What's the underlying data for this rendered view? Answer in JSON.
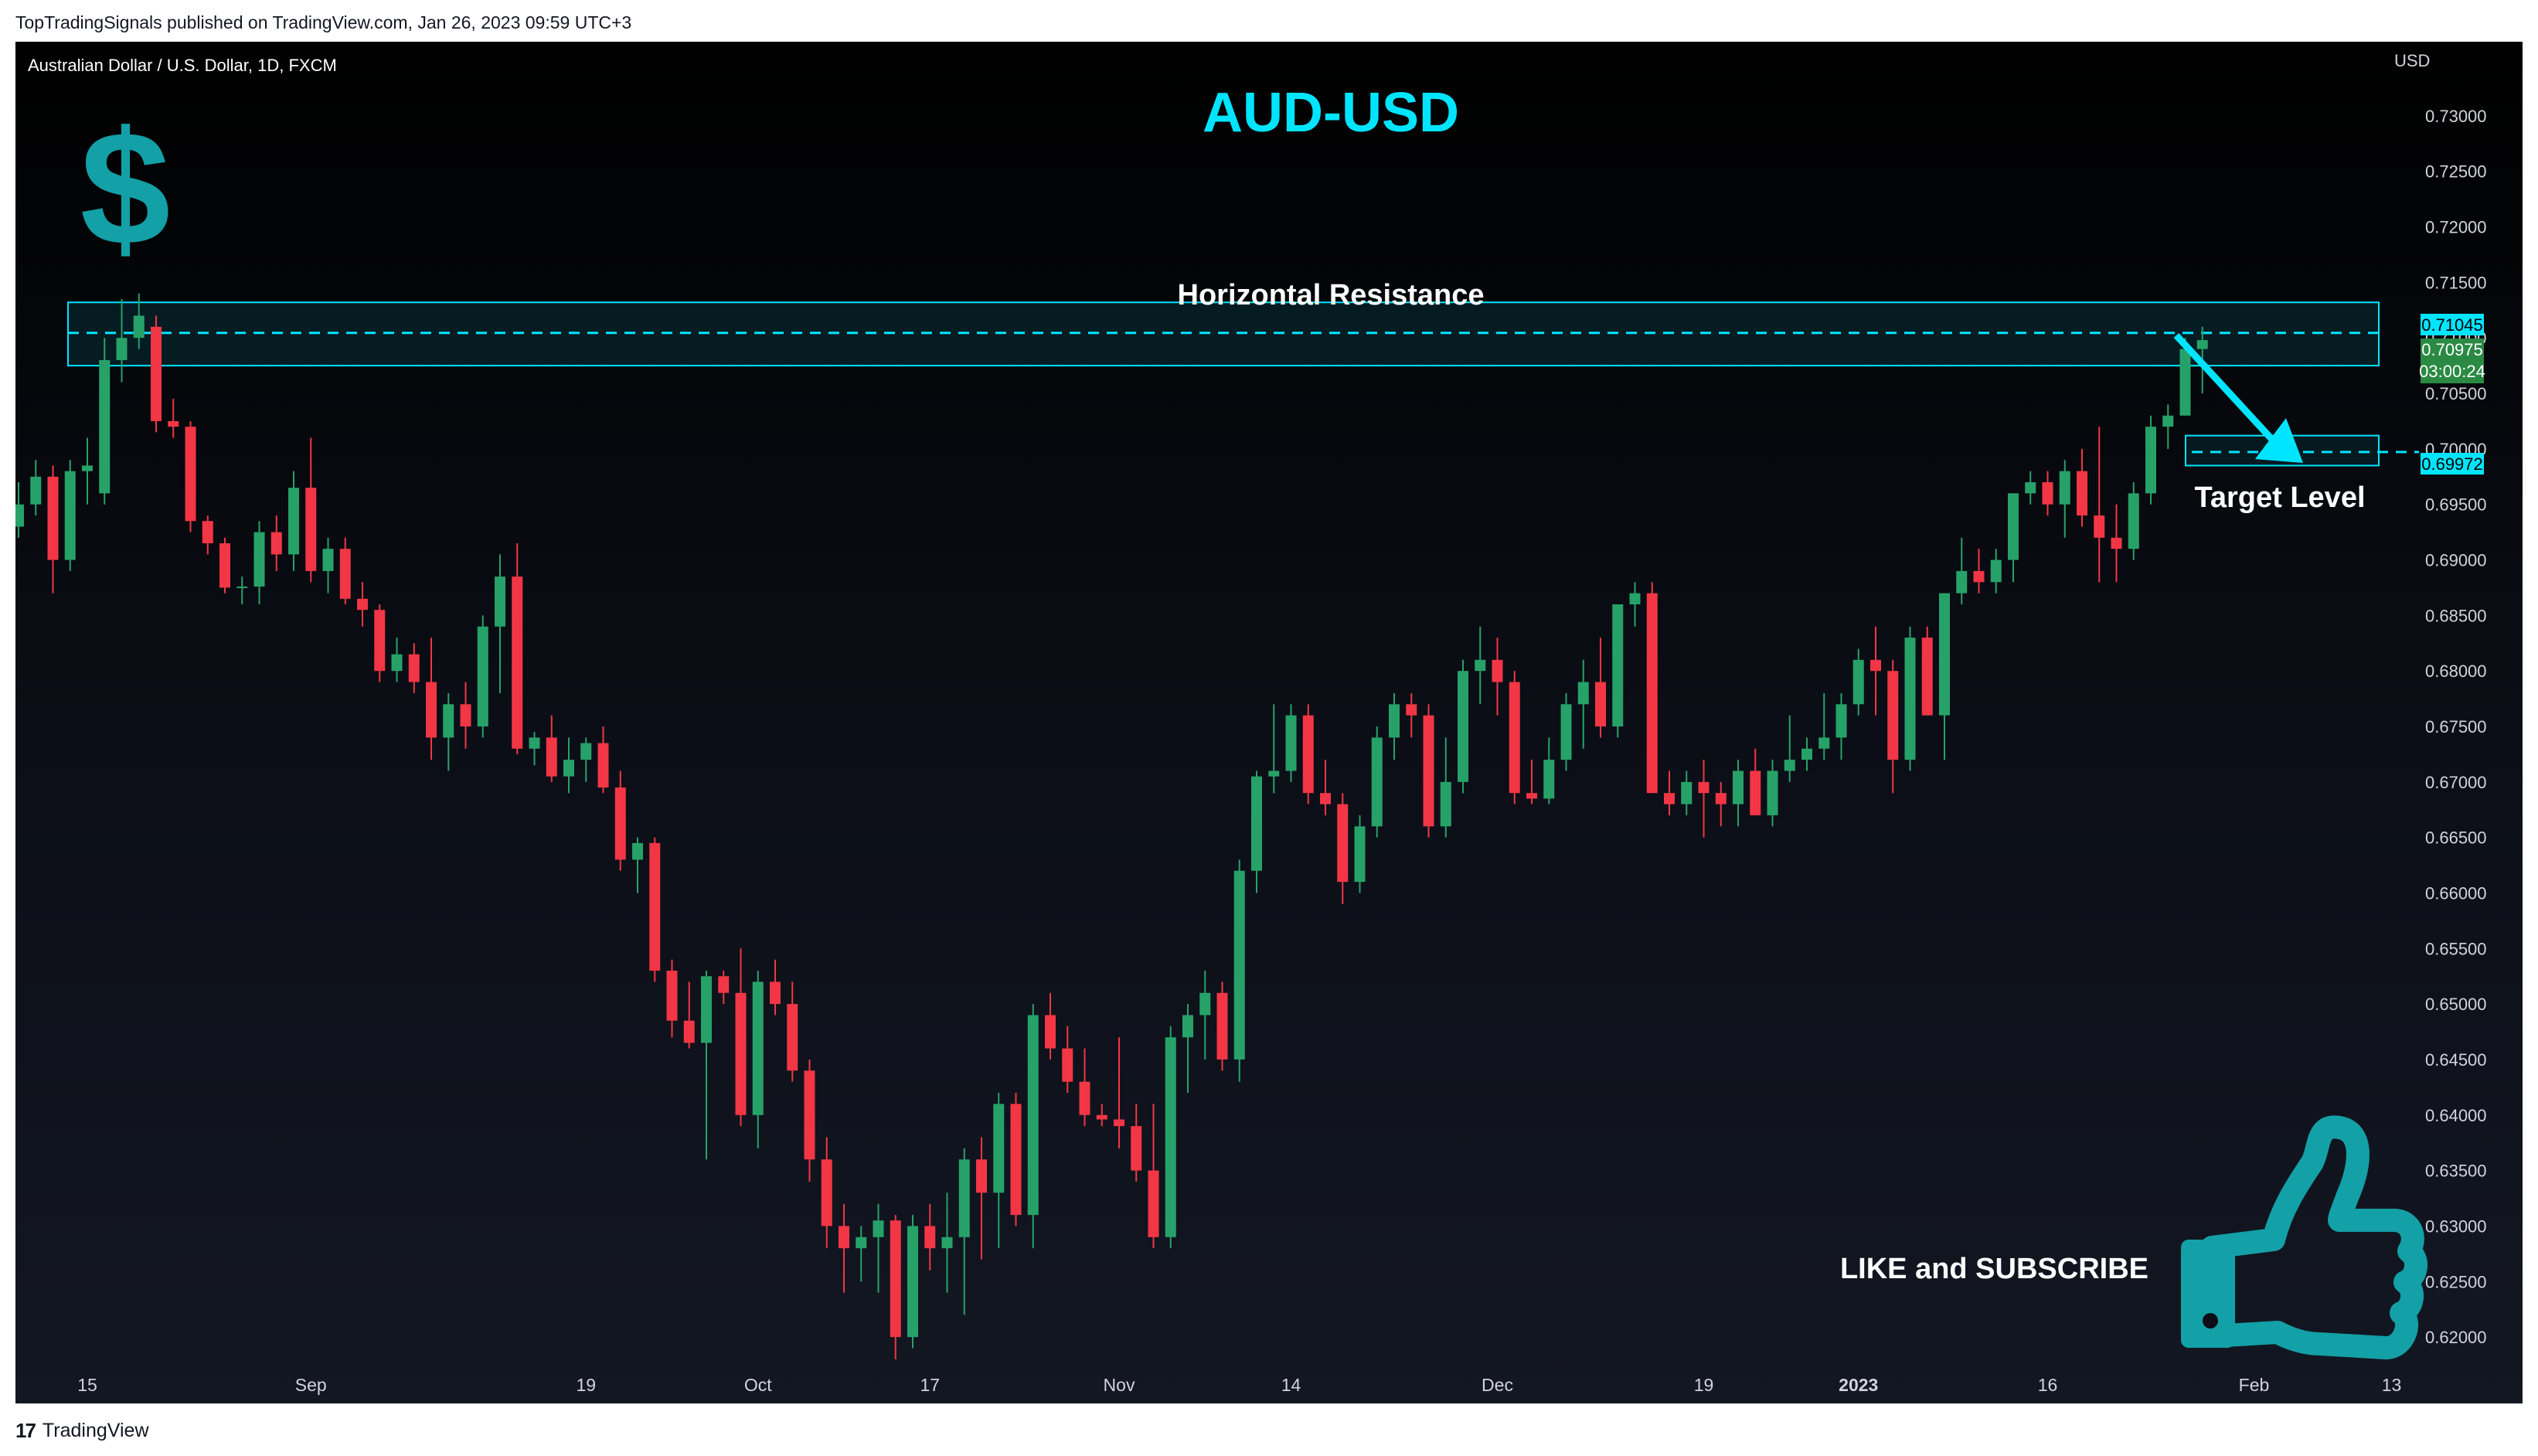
{
  "header": {
    "published": "TopTradingSignals published on TradingView.com, Jan 26, 2023 09:59 UTC+3"
  },
  "footer": {
    "logo": "17",
    "brand": "TradingView"
  },
  "chart_data": {
    "type": "candlestick",
    "symbol_line": "Australian Dollar / U.S. Dollar, 1D, FXCM",
    "title": "AUD-USD",
    "currency": "USD",
    "ylim": [
      0.6175,
      0.7325
    ],
    "y_ticks": [
      "0.73000",
      "0.72500",
      "0.72000",
      "0.71500",
      "0.71000",
      "0.70500",
      "0.70000",
      "0.69500",
      "0.69000",
      "0.68500",
      "0.68000",
      "0.67500",
      "0.67000",
      "0.66500",
      "0.66000",
      "0.65500",
      "0.65000",
      "0.64500",
      "0.64000",
      "0.63500",
      "0.63000",
      "0.62500",
      "0.62000"
    ],
    "x_ticks": [
      {
        "label": "15",
        "bar": 4,
        "bold": false
      },
      {
        "label": "Sep",
        "bar": 17,
        "bold": false
      },
      {
        "label": "19",
        "bar": 33,
        "bold": false
      },
      {
        "label": "Oct",
        "bar": 43,
        "bold": false
      },
      {
        "label": "17",
        "bar": 53,
        "bold": false
      },
      {
        "label": "Nov",
        "bar": 64,
        "bold": false
      },
      {
        "label": "14",
        "bar": 74,
        "bold": false
      },
      {
        "label": "Dec",
        "bar": 86,
        "bold": false
      },
      {
        "label": "19",
        "bar": 98,
        "bold": false
      },
      {
        "label": "2023",
        "bar": 107,
        "bold": true
      },
      {
        "label": "16",
        "bar": 118,
        "bold": false
      },
      {
        "label": "Feb",
        "bar": 130,
        "bold": false
      },
      {
        "label": "13",
        "bar": 138,
        "bold": false
      }
    ],
    "candles": [
      [
        0.693,
        0.697,
        0.692,
        0.695
      ],
      [
        0.695,
        0.699,
        0.694,
        0.6975
      ],
      [
        0.6975,
        0.6985,
        0.687,
        0.69
      ],
      [
        0.69,
        0.699,
        0.689,
        0.698
      ],
      [
        0.698,
        0.701,
        0.695,
        0.6985
      ],
      [
        0.696,
        0.71,
        0.695,
        0.708
      ],
      [
        0.708,
        0.7135,
        0.706,
        0.71
      ],
      [
        0.71,
        0.714,
        0.709,
        0.712
      ],
      [
        0.711,
        0.712,
        0.7015,
        0.7025
      ],
      [
        0.7025,
        0.7045,
        0.701,
        0.702
      ],
      [
        0.702,
        0.7025,
        0.6925,
        0.6935
      ],
      [
        0.6935,
        0.694,
        0.6905,
        0.6915
      ],
      [
        0.6915,
        0.692,
        0.687,
        0.6875
      ],
      [
        0.6875,
        0.6885,
        0.686,
        0.6876
      ],
      [
        0.6876,
        0.6935,
        0.686,
        0.6925
      ],
      [
        0.6925,
        0.694,
        0.689,
        0.6905
      ],
      [
        0.6905,
        0.698,
        0.689,
        0.6965
      ],
      [
        0.6965,
        0.701,
        0.688,
        0.689
      ],
      [
        0.689,
        0.692,
        0.687,
        0.691
      ],
      [
        0.691,
        0.692,
        0.686,
        0.6865
      ],
      [
        0.6865,
        0.688,
        0.684,
        0.6855
      ],
      [
        0.6855,
        0.686,
        0.679,
        0.68
      ],
      [
        0.68,
        0.683,
        0.679,
        0.6815
      ],
      [
        0.6815,
        0.6825,
        0.678,
        0.679
      ],
      [
        0.679,
        0.683,
        0.672,
        0.674
      ],
      [
        0.674,
        0.678,
        0.671,
        0.677
      ],
      [
        0.677,
        0.679,
        0.673,
        0.675
      ],
      [
        0.675,
        0.685,
        0.674,
        0.684
      ],
      [
        0.684,
        0.6905,
        0.678,
        0.6885
      ],
      [
        0.6885,
        0.6915,
        0.6725,
        0.673
      ],
      [
        0.673,
        0.6745,
        0.6715,
        0.674
      ],
      [
        0.674,
        0.676,
        0.67,
        0.6705
      ],
      [
        0.6705,
        0.674,
        0.669,
        0.672
      ],
      [
        0.672,
        0.674,
        0.67,
        0.6735
      ],
      [
        0.6735,
        0.675,
        0.669,
        0.6695
      ],
      [
        0.6695,
        0.671,
        0.662,
        0.663
      ],
      [
        0.663,
        0.665,
        0.66,
        0.6645
      ],
      [
        0.6645,
        0.665,
        0.652,
        0.653
      ],
      [
        0.653,
        0.654,
        0.647,
        0.6485
      ],
      [
        0.6485,
        0.652,
        0.646,
        0.6465
      ],
      [
        0.6465,
        0.653,
        0.636,
        0.6525
      ],
      [
        0.6525,
        0.653,
        0.65,
        0.651
      ],
      [
        0.651,
        0.655,
        0.639,
        0.64
      ],
      [
        0.64,
        0.653,
        0.637,
        0.652
      ],
      [
        0.652,
        0.654,
        0.649,
        0.65
      ],
      [
        0.65,
        0.652,
        0.643,
        0.644
      ],
      [
        0.644,
        0.645,
        0.634,
        0.636
      ],
      [
        0.636,
        0.638,
        0.628,
        0.63
      ],
      [
        0.63,
        0.632,
        0.624,
        0.628
      ],
      [
        0.628,
        0.63,
        0.625,
        0.629
      ],
      [
        0.629,
        0.632,
        0.624,
        0.6305
      ],
      [
        0.6305,
        0.631,
        0.618,
        0.62
      ],
      [
        0.62,
        0.631,
        0.619,
        0.63
      ],
      [
        0.63,
        0.632,
        0.626,
        0.628
      ],
      [
        0.628,
        0.633,
        0.624,
        0.629
      ],
      [
        0.629,
        0.637,
        0.622,
        0.636
      ],
      [
        0.636,
        0.638,
        0.627,
        0.633
      ],
      [
        0.633,
        0.642,
        0.628,
        0.641
      ],
      [
        0.641,
        0.642,
        0.63,
        0.631
      ],
      [
        0.631,
        0.65,
        0.628,
        0.649
      ],
      [
        0.649,
        0.651,
        0.645,
        0.646
      ],
      [
        0.646,
        0.648,
        0.642,
        0.643
      ],
      [
        0.643,
        0.646,
        0.639,
        0.64
      ],
      [
        0.64,
        0.641,
        0.639,
        0.6396
      ],
      [
        0.6396,
        0.647,
        0.637,
        0.639
      ],
      [
        0.639,
        0.641,
        0.634,
        0.635
      ],
      [
        0.635,
        0.641,
        0.628,
        0.629
      ],
      [
        0.629,
        0.648,
        0.628,
        0.647
      ],
      [
        0.647,
        0.65,
        0.642,
        0.649
      ],
      [
        0.649,
        0.653,
        0.645,
        0.651
      ],
      [
        0.651,
        0.652,
        0.644,
        0.645
      ],
      [
        0.645,
        0.663,
        0.643,
        0.662
      ],
      [
        0.662,
        0.671,
        0.66,
        0.6705
      ],
      [
        0.6705,
        0.677,
        0.669,
        0.671
      ],
      [
        0.671,
        0.677,
        0.67,
        0.676
      ],
      [
        0.676,
        0.677,
        0.668,
        0.669
      ],
      [
        0.669,
        0.672,
        0.667,
        0.668
      ],
      [
        0.668,
        0.669,
        0.659,
        0.661
      ],
      [
        0.661,
        0.667,
        0.66,
        0.666
      ],
      [
        0.666,
        0.675,
        0.665,
        0.674
      ],
      [
        0.674,
        0.678,
        0.672,
        0.677
      ],
      [
        0.677,
        0.678,
        0.674,
        0.676
      ],
      [
        0.676,
        0.677,
        0.665,
        0.666
      ],
      [
        0.666,
        0.674,
        0.665,
        0.67
      ],
      [
        0.67,
        0.681,
        0.669,
        0.68
      ],
      [
        0.68,
        0.684,
        0.677,
        0.681
      ],
      [
        0.681,
        0.683,
        0.676,
        0.679
      ],
      [
        0.679,
        0.68,
        0.668,
        0.669
      ],
      [
        0.669,
        0.672,
        0.668,
        0.6685
      ],
      [
        0.6685,
        0.674,
        0.668,
        0.672
      ],
      [
        0.672,
        0.678,
        0.671,
        0.677
      ],
      [
        0.677,
        0.681,
        0.673,
        0.679
      ],
      [
        0.679,
        0.683,
        0.674,
        0.675
      ],
      [
        0.675,
        0.686,
        0.674,
        0.686
      ],
      [
        0.686,
        0.688,
        0.684,
        0.687
      ],
      [
        0.687,
        0.688,
        0.669,
        0.669
      ],
      [
        0.669,
        0.671,
        0.667,
        0.668
      ],
      [
        0.668,
        0.671,
        0.667,
        0.67
      ],
      [
        0.67,
        0.672,
        0.665,
        0.669
      ],
      [
        0.669,
        0.67,
        0.666,
        0.668
      ],
      [
        0.668,
        0.672,
        0.666,
        0.671
      ],
      [
        0.671,
        0.673,
        0.667,
        0.667
      ],
      [
        0.667,
        0.672,
        0.666,
        0.671
      ],
      [
        0.671,
        0.676,
        0.67,
        0.672
      ],
      [
        0.672,
        0.674,
        0.671,
        0.673
      ],
      [
        0.673,
        0.678,
        0.672,
        0.674
      ],
      [
        0.674,
        0.678,
        0.672,
        0.677
      ],
      [
        0.677,
        0.682,
        0.676,
        0.681
      ],
      [
        0.681,
        0.684,
        0.676,
        0.68
      ],
      [
        0.68,
        0.681,
        0.669,
        0.672
      ],
      [
        0.672,
        0.684,
        0.671,
        0.683
      ],
      [
        0.683,
        0.684,
        0.676,
        0.676
      ],
      [
        0.676,
        0.687,
        0.672,
        0.687
      ],
      [
        0.687,
        0.692,
        0.686,
        0.689
      ],
      [
        0.689,
        0.691,
        0.687,
        0.688
      ],
      [
        0.688,
        0.691,
        0.687,
        0.69
      ],
      [
        0.69,
        0.696,
        0.688,
        0.696
      ],
      [
        0.696,
        0.698,
        0.695,
        0.697
      ],
      [
        0.697,
        0.698,
        0.694,
        0.695
      ],
      [
        0.695,
        0.699,
        0.692,
        0.698
      ],
      [
        0.698,
        0.7,
        0.693,
        0.694
      ],
      [
        0.694,
        0.702,
        0.688,
        0.692
      ],
      [
        0.692,
        0.695,
        0.688,
        0.691
      ],
      [
        0.691,
        0.697,
        0.69,
        0.696
      ],
      [
        0.696,
        0.703,
        0.695,
        0.702
      ],
      [
        0.702,
        0.704,
        0.7,
        0.703
      ],
      [
        0.703,
        0.71,
        0.703,
        0.709
      ],
      [
        0.709,
        0.711,
        0.705,
        0.7098
      ]
    ],
    "annotations": {
      "resistance_label": "Horizontal Resistance",
      "resistance_zone": [
        0.7075,
        0.7132
      ],
      "resistance_line": 0.71045,
      "target_label": "Target Level",
      "target_zone": [
        0.6985,
        0.7012
      ],
      "target_line": 0.69972,
      "cta": "LIKE and SUBSCRIBE"
    },
    "price_labels": {
      "resistance": "0.71045",
      "last": "0.70975",
      "countdown": "03:00:24",
      "target": "0.69972"
    },
    "grid": false,
    "colors": {
      "up": "#26a269",
      "down": "#f23645",
      "accent": "#00e5ff",
      "icon": "#13a0a6"
    }
  }
}
